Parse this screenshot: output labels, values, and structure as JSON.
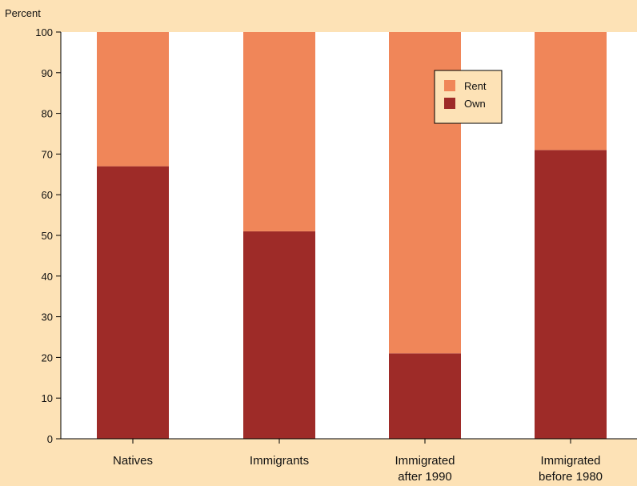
{
  "chart_data": {
    "type": "bar",
    "stacked": true,
    "ylabel": "Percent",
    "xlabel": "",
    "ylim": [
      0,
      100
    ],
    "yticks": [
      0,
      10,
      20,
      30,
      40,
      50,
      60,
      70,
      80,
      90,
      100
    ],
    "categories": [
      [
        "Natives"
      ],
      [
        "Immigrants"
      ],
      [
        "Immigrated",
        "after 1990"
      ],
      [
        "Immigrated",
        "before 1980"
      ]
    ],
    "series": [
      {
        "name": "Own",
        "color": "#9e2b28",
        "values": [
          67,
          51,
          21,
          71
        ]
      },
      {
        "name": "Rent",
        "color": "#f08659",
        "values": [
          33,
          49,
          79,
          29
        ]
      }
    ],
    "legend": {
      "placement": "top-right-of-center",
      "order": [
        "Rent",
        "Own"
      ]
    },
    "colors": {
      "background": "#fde2b6",
      "plot_background": "#ffffff",
      "axis": "#000000"
    },
    "grid": false
  }
}
